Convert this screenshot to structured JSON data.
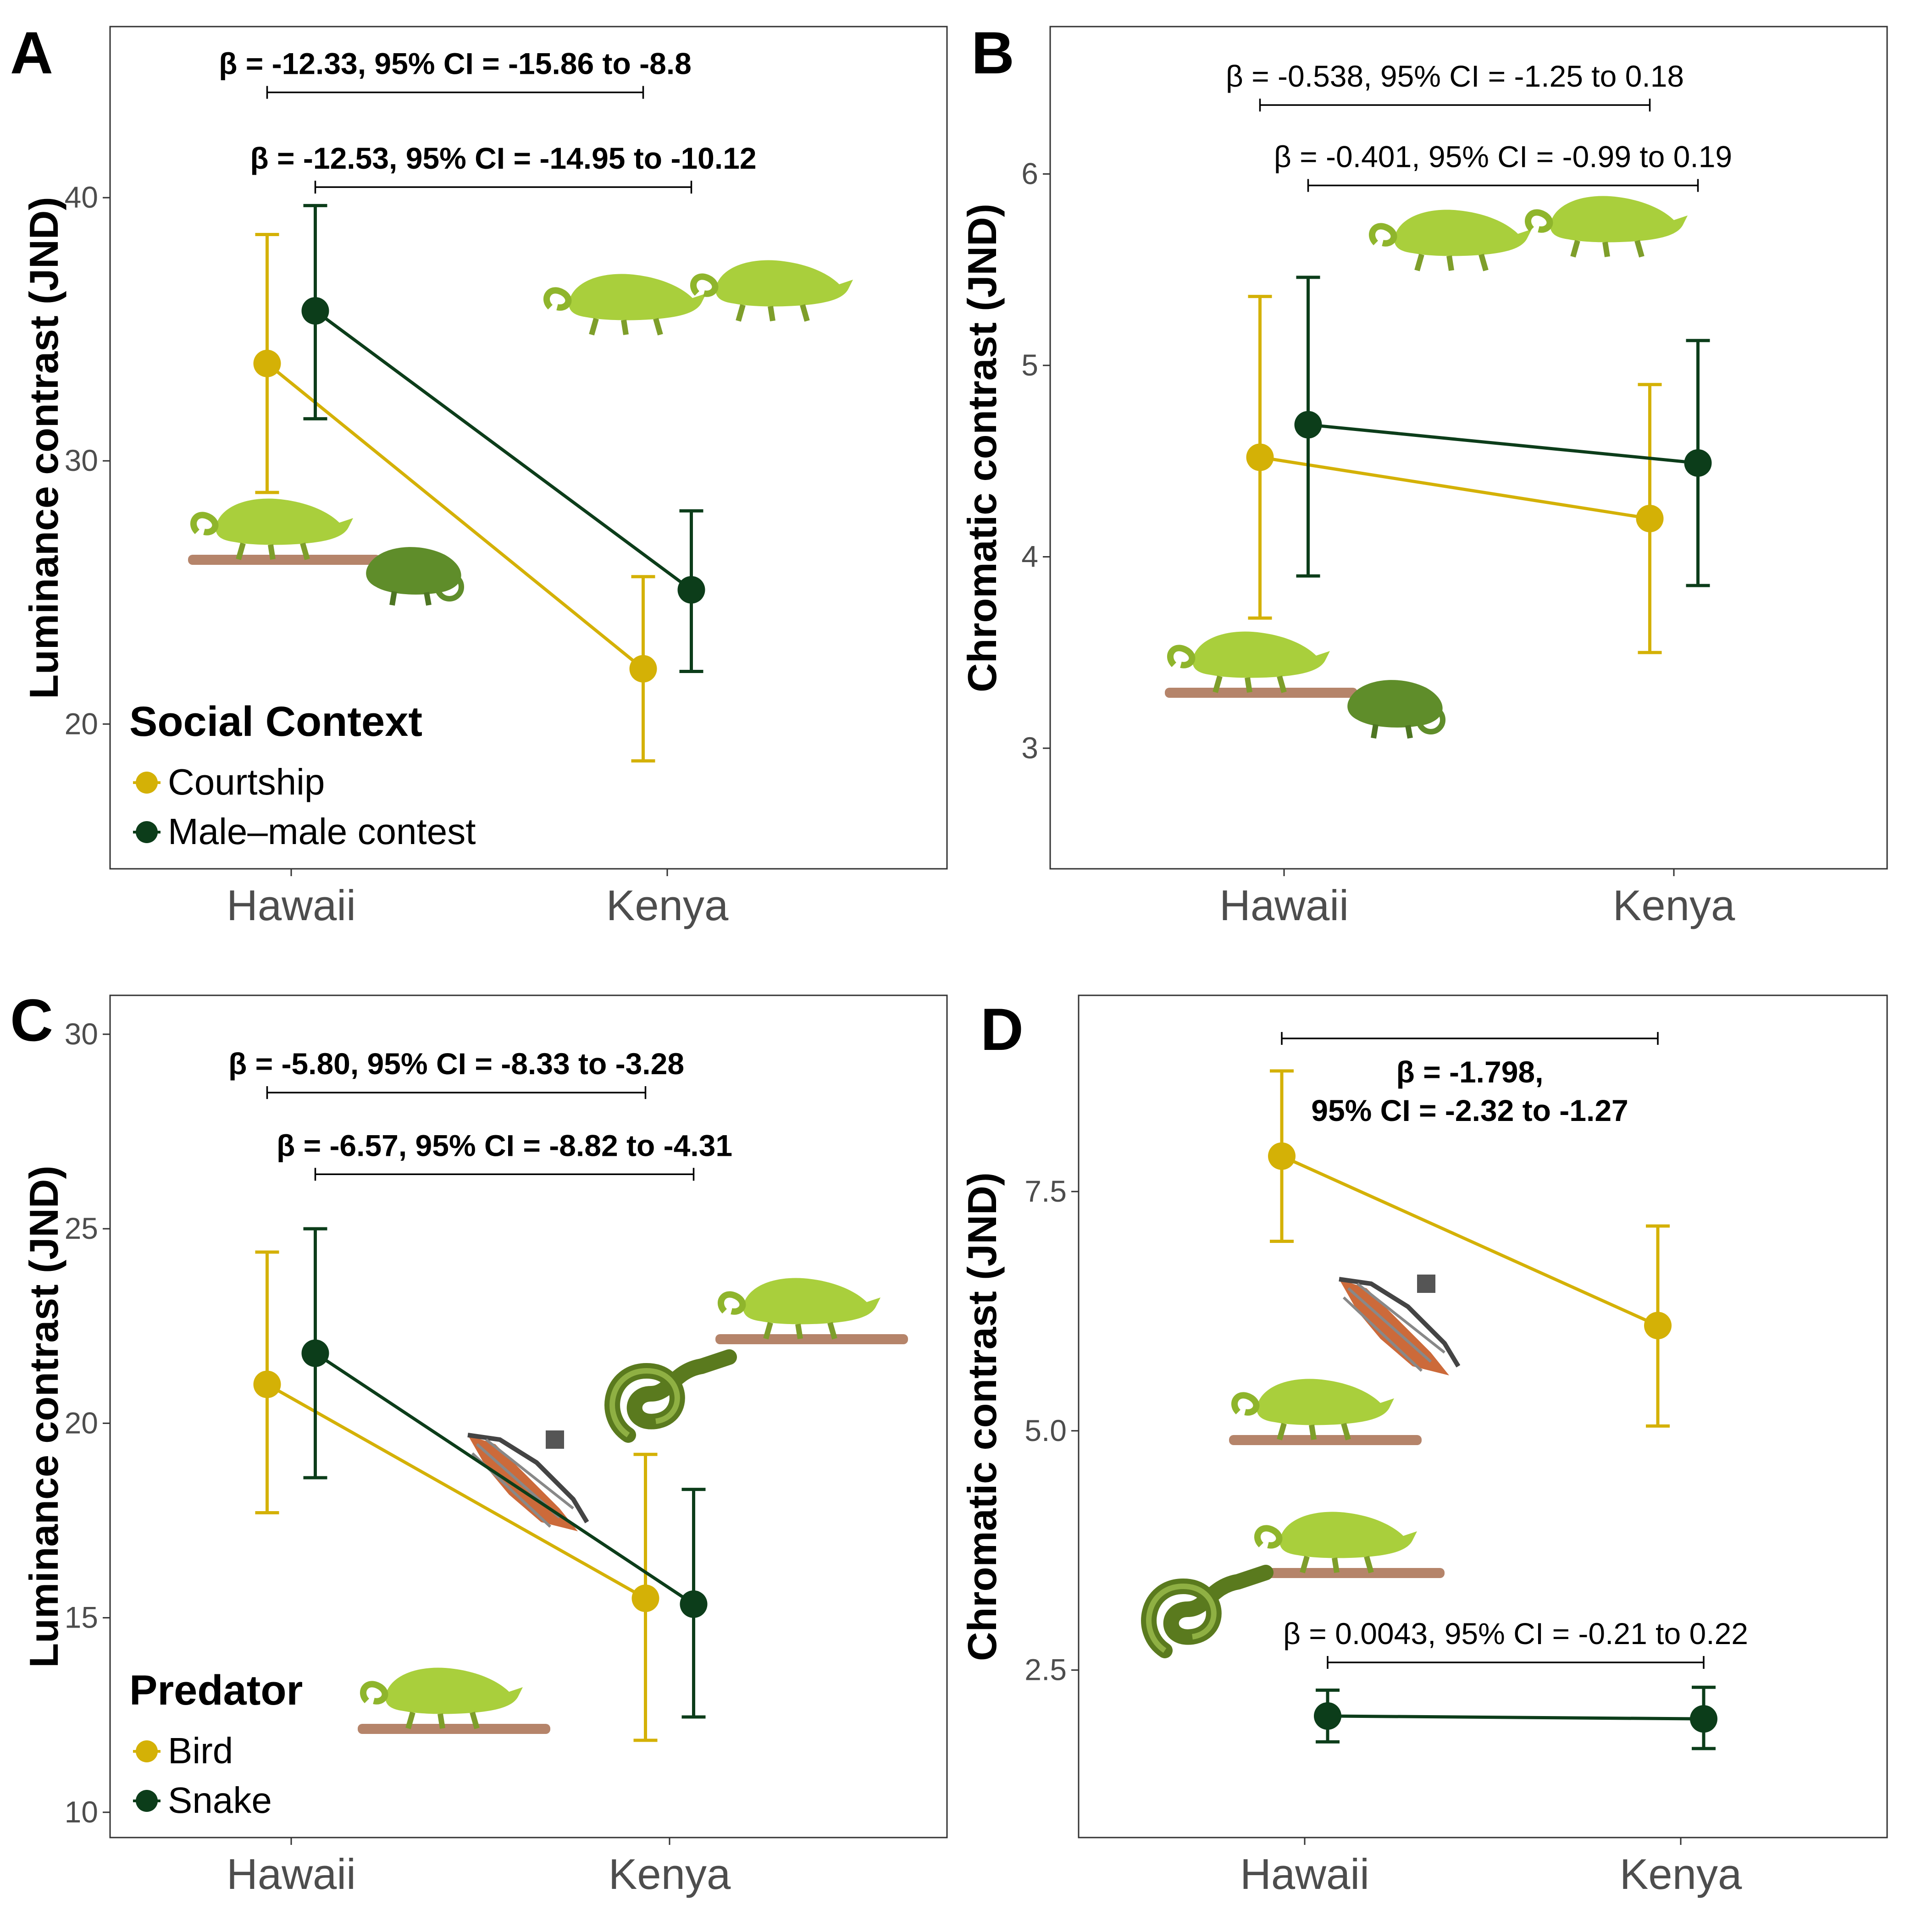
{
  "colors": {
    "courtship_bird": "#d4b106",
    "contest_snake": "#0c3d1a",
    "panel_border": "#333333",
    "tick_text": "#4d4d4d"
  },
  "illustrations": [
    "chameleon-courtship-icon",
    "chameleon-contest-icon",
    "bird-predator-icon",
    "snake-predator-icon"
  ],
  "chart_data": [
    {
      "type": "line",
      "panel": "A",
      "ylabel": "Luminance contrast (JND)",
      "categories": [
        "Hawaii",
        "Kenya"
      ],
      "yticks": [
        20,
        30,
        40
      ],
      "ylim": [
        14.5,
        46.5
      ],
      "legend": {
        "title": "Social Context",
        "position": "bottom-left"
      },
      "series": [
        {
          "name": "Courtship",
          "color": "#d4b106",
          "values": [
            33.7,
            22.1
          ],
          "lower": [
            28.8,
            18.6
          ],
          "upper": [
            38.6,
            25.6
          ]
        },
        {
          "name": "Male–male contest",
          "color": "#0c3d1a",
          "values": [
            35.7,
            25.1
          ],
          "lower": [
            31.6,
            22.0
          ],
          "upper": [
            39.7,
            28.1
          ]
        }
      ],
      "annotations": [
        {
          "text": "β = -12.33, 95% CI = -15.86 to -8.8",
          "series": 0,
          "bold": true,
          "y": 44.0
        },
        {
          "text": "β = -12.53, 95% CI = -14.95 to -10.12",
          "series": 1,
          "bold": true,
          "y": 40.4
        }
      ]
    },
    {
      "type": "line",
      "panel": "B",
      "ylabel": "Chromatic contrast (JND)",
      "categories": [
        "Hawaii",
        "Kenya"
      ],
      "yticks": [
        3,
        4,
        5,
        6
      ],
      "ylim": [
        2.37,
        6.77
      ],
      "series": [
        {
          "name": "Courtship",
          "color": "#d4b106",
          "values": [
            4.52,
            4.2
          ],
          "lower": [
            3.68,
            3.5
          ],
          "upper": [
            5.36,
            4.9
          ]
        },
        {
          "name": "Male–male contest",
          "color": "#0c3d1a",
          "values": [
            4.69,
            4.49
          ],
          "lower": [
            3.9,
            3.85
          ],
          "upper": [
            5.46,
            5.13
          ]
        }
      ],
      "annotations": [
        {
          "text": "β = -0.538, 95% CI = -1.25 to 0.18",
          "series": 0,
          "bold": false,
          "y": 6.36
        },
        {
          "text": "β = -0.401, 95% CI = -0.99 to 0.19",
          "series": 1,
          "bold": false,
          "y": 5.94
        }
      ]
    },
    {
      "type": "line",
      "panel": "C",
      "ylabel": "Luminance contrast (JND)",
      "categories": [
        "Hawaii",
        "Kenya"
      ],
      "yticks": [
        10,
        15,
        20,
        25,
        30
      ],
      "ylim": [
        9.35,
        31.0
      ],
      "legend": {
        "title": "Predator",
        "position": "bottom-left"
      },
      "series": [
        {
          "name": "Bird",
          "color": "#d4b106",
          "values": [
            21.0,
            15.5
          ],
          "lower": [
            17.7,
            11.85
          ],
          "upper": [
            24.4,
            19.2
          ]
        },
        {
          "name": "Snake",
          "color": "#0c3d1a",
          "values": [
            21.8,
            15.35
          ],
          "lower": [
            18.6,
            12.45
          ],
          "upper": [
            25.0,
            18.3
          ]
        }
      ],
      "annotations": [
        {
          "text": "β = -5.80, 95% CI = -8.33 to -3.28",
          "series": 0,
          "bold": true,
          "y": 28.5
        },
        {
          "text": "β = -6.57, 95% CI = -8.82 to -4.31",
          "series": 1,
          "bold": true,
          "y": 26.4
        }
      ]
    },
    {
      "type": "line",
      "panel": "D",
      "ylabel": "Chromatic contrast (JND)",
      "categories": [
        "Hawaii",
        "Kenya"
      ],
      "yticks": [
        2.5,
        5.0,
        7.5
      ],
      "yticklabels": [
        "2.5",
        "5.0",
        "7.5"
      ],
      "ylim": [
        0.75,
        9.55
      ],
      "series": [
        {
          "name": "Bird",
          "color": "#d4b106",
          "values": [
            7.87,
            6.1
          ],
          "lower": [
            6.98,
            5.05
          ],
          "upper": [
            8.76,
            7.14
          ]
        },
        {
          "name": "Snake",
          "color": "#0c3d1a",
          "values": [
            2.02,
            1.99
          ],
          "lower": [
            1.75,
            1.68
          ],
          "upper": [
            2.29,
            2.32
          ]
        }
      ],
      "annotations": [
        {
          "text": "β = -1.798,",
          "text2": "95% CI = -2.32 to -1.27",
          "series": 0,
          "bold": true,
          "y": 9.1,
          "below": true
        },
        {
          "text": "β = 0.0043, 95% CI = -0.21 to 0.22",
          "series": 1,
          "bold": false,
          "y": 2.58
        }
      ]
    }
  ]
}
